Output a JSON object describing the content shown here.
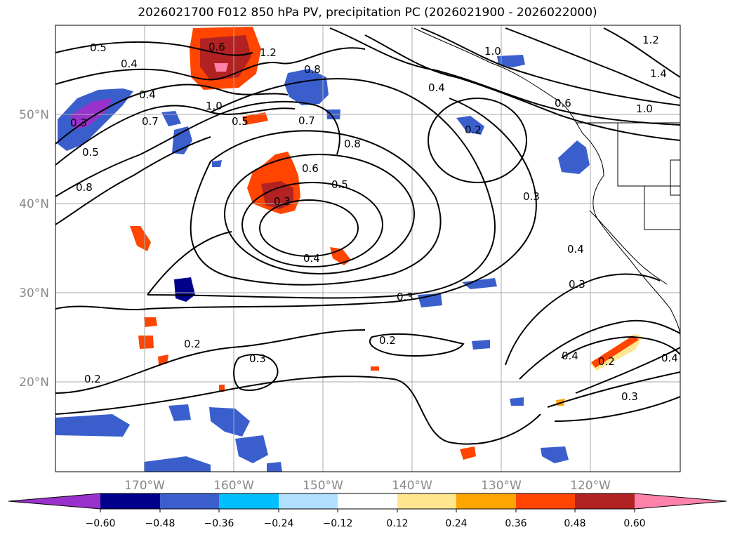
{
  "chart_data": {
    "type": "contour-map",
    "title": "2026021700 F012 850 hPa PV, precipitation PC (2026021900 - 2026022000)",
    "projection": "PlateCarree",
    "extent": {
      "lon": [
        -180,
        -110
      ],
      "lat": [
        10,
        60
      ]
    },
    "lat_ticks": [
      {
        "value": 50,
        "label": "50°N"
      },
      {
        "value": 40,
        "label": "40°N"
      },
      {
        "value": 30,
        "label": "30°N"
      },
      {
        "value": 20,
        "label": "20°N"
      }
    ],
    "lon_ticks": [
      {
        "value": -170,
        "label": "170°W"
      },
      {
        "value": -160,
        "label": "160°W"
      },
      {
        "value": -150,
        "label": "150°W"
      },
      {
        "value": -140,
        "label": "140°W"
      },
      {
        "value": -130,
        "label": "130°W"
      },
      {
        "value": -120,
        "label": "120°W"
      }
    ],
    "colorbar": {
      "extend": "both",
      "colors": [
        "#9932cc",
        "#00008b",
        "#3a5fcd",
        "#00bfff",
        "#b0e0ff",
        "#ffffff",
        "#ffe68f",
        "#ffa500",
        "#ff4500",
        "#b22222",
        "#ff82ab"
      ],
      "ticks": [
        "−0.60",
        "−0.48",
        "−0.36",
        "−0.24",
        "−0.12",
        "0.12",
        "0.24",
        "0.36",
        "0.48",
        "0.60"
      ]
    },
    "contour_labels": [
      "0.5",
      "0.4",
      "0.4",
      "0.7",
      "0.3",
      "0.5",
      "0.8",
      "1.0",
      "0.6",
      "1.2",
      "0.8",
      "0.4",
      "1.0",
      "1.2",
      "1.4",
      "0.6",
      "1.0",
      "0.5",
      "0.7",
      "0.2",
      "0.8",
      "0.6",
      "0.5",
      "0.3",
      "0.4",
      "0.3",
      "0.3",
      "0.4",
      "0.3",
      "0.2",
      "0.2",
      "0.3",
      "0.2",
      "0.4",
      "0.2",
      "0.3",
      "0.4"
    ]
  }
}
